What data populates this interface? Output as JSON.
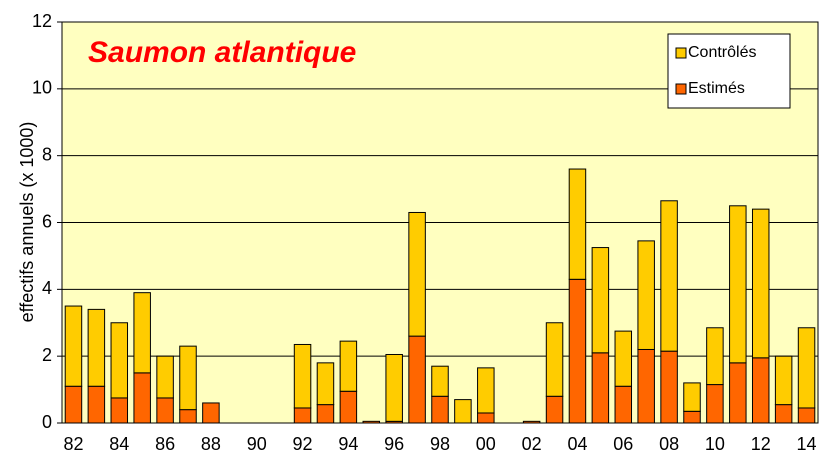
{
  "chart_data": {
    "type": "stacked_bar",
    "title": "Saumon atlantique",
    "y_label": "effectifs annuels (x 1000)",
    "categories": [
      "82",
      null,
      "84",
      null,
      "86",
      null,
      "88",
      null,
      "90",
      null,
      "92",
      null,
      "94",
      null,
      "96",
      null,
      "98",
      null,
      "00",
      null,
      "02",
      null,
      "04",
      null,
      "06",
      null,
      "08",
      null,
      "10",
      null,
      "12",
      null,
      "14"
    ],
    "series": [
      {
        "name": "Estimés",
        "color": "#ff6600",
        "values": [
          1.1,
          1.1,
          0.75,
          1.5,
          0.75,
          0.4,
          0.6,
          0,
          0,
          0,
          0.45,
          0.55,
          0.95,
          0.05,
          0.05,
          2.6,
          0.8,
          0,
          0.3,
          0,
          0.05,
          0.8,
          4.3,
          2.1,
          1.1,
          2.2,
          2.15,
          0.35,
          1.15,
          1.8,
          1.95,
          0.55,
          0.45
        ]
      },
      {
        "name": "Contrôlés",
        "color": "#ffcc00",
        "values": [
          2.4,
          2.3,
          2.25,
          2.4,
          1.25,
          1.9,
          0,
          0,
          0,
          0,
          1.9,
          1.25,
          1.5,
          0,
          2.0,
          3.7,
          0.9,
          0.7,
          1.35,
          0,
          0,
          2.2,
          3.3,
          3.15,
          1.65,
          3.25,
          4.5,
          0.85,
          1.7,
          4.7,
          4.45,
          1.45,
          2.4
        ]
      }
    ],
    "ylim": [
      0,
      12
    ],
    "yticks": [
      0,
      2,
      4,
      6,
      8,
      10,
      12
    ],
    "grid": true,
    "legend": "top-right"
  }
}
